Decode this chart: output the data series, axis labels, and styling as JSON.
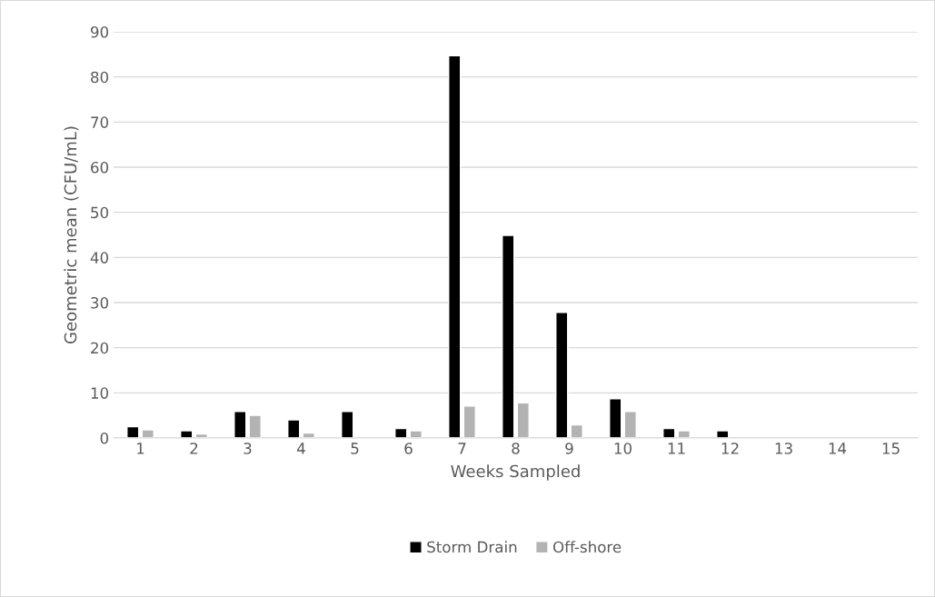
{
  "chart_data": {
    "type": "bar",
    "xlabel": "Weeks Sampled",
    "ylabel": "Geometric mean (CFU/mL)",
    "categories": [
      "1",
      "2",
      "3",
      "4",
      "5",
      "6",
      "7",
      "8",
      "9",
      "10",
      "11",
      "12",
      "13",
      "14",
      "15"
    ],
    "series": [
      {
        "name": "Storm Drain",
        "color": "#000000",
        "values": [
          2.5,
          1.6,
          5.9,
          4.0,
          5.9,
          2.1,
          84.7,
          44.9,
          27.8,
          8.7,
          2.1,
          1.6,
          null,
          null,
          null
        ]
      },
      {
        "name": "Off-shore",
        "color": "#b3b3b3",
        "values": [
          1.8,
          0.9,
          5.0,
          1.1,
          null,
          1.6,
          7.1,
          7.8,
          2.9,
          5.9,
          1.6,
          null,
          null,
          null,
          null
        ]
      }
    ],
    "ylim": [
      0,
      90
    ],
    "yticks": [
      0,
      10,
      20,
      30,
      40,
      50,
      60,
      70,
      80,
      90
    ],
    "grid": "y",
    "legend": "bottom"
  }
}
